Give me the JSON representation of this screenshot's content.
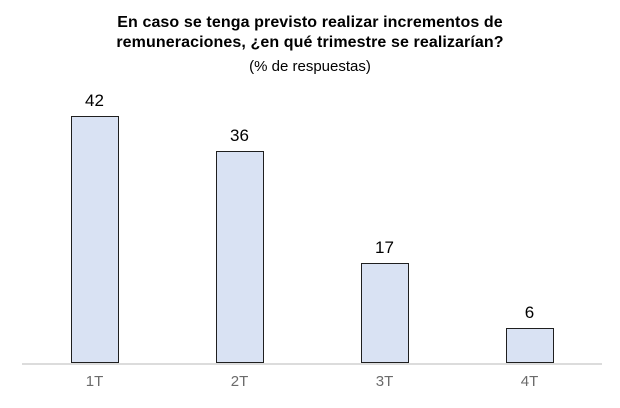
{
  "page": {
    "background": "#ffffff"
  },
  "chart_data": {
    "type": "bar",
    "title": "En caso se tenga previsto realizar incrementos de remuneraciones, ¿en qué trimestre se realizarían?",
    "subtitle": "(% de respuestas)",
    "categories": [
      "1T",
      "2T",
      "3T",
      "4T"
    ],
    "values": [
      42,
      36,
      17,
      6
    ],
    "xlabel": "",
    "ylabel": "",
    "ylim": [
      0,
      45
    ],
    "grid": false,
    "legend": "none",
    "data_labels": true,
    "colors": {
      "bar_fill": "#d9e2f3",
      "bar_border": "#1f1f1f",
      "axis_line": "#dcdcdc",
      "value_label": "#000000",
      "tick_label": "#6b6b6b",
      "title": "#000000"
    }
  }
}
